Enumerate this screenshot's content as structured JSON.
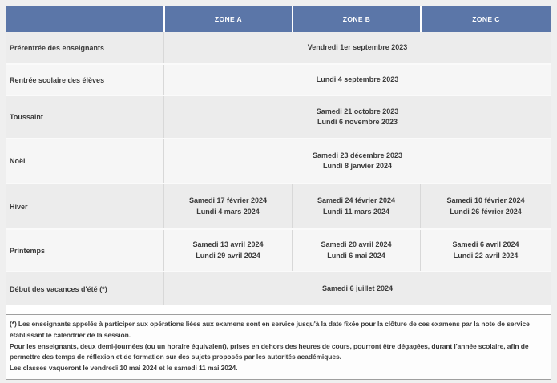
{
  "colors": {
    "header_bg": "#5b76a8",
    "header_text": "#ffffff",
    "row_dark": "#ececec",
    "row_light": "#f6f6f6",
    "text": "#3b3b3b",
    "border": "#9f9f9f",
    "cell_divider": "#d8d8d8",
    "page_bg": "#efefef"
  },
  "table": {
    "header": {
      "corner": "",
      "zones": [
        "ZONE A",
        "ZONE B",
        "ZONE C"
      ]
    },
    "rows": [
      {
        "label": "Prérentrée des enseignants",
        "merged": [
          "Vendredi 1er septembre 2023"
        ]
      },
      {
        "label": "Rentrée scolaire des élèves",
        "merged": [
          "Lundi 4 septembre 2023"
        ]
      },
      {
        "label": "Toussaint",
        "merged": [
          "Samedi 21 octobre 2023",
          "Lundi 6 novembre 2023"
        ]
      },
      {
        "label": "Noël",
        "merged": [
          "Samedi 23 décembre 2023",
          "Lundi 8 janvier 2024"
        ]
      },
      {
        "label": "Hiver",
        "zones": [
          [
            "Samedi 17 février 2024",
            "Lundi 4 mars 2024"
          ],
          [
            "Samedi 24 février 2024",
            "Lundi 11 mars 2024"
          ],
          [
            "Samedi 10 février 2024",
            "Lundi 26 février 2024"
          ]
        ]
      },
      {
        "label": "Printemps",
        "zones": [
          [
            "Samedi 13 avril 2024",
            "Lundi 29 avril 2024"
          ],
          [
            "Samedi 20 avril 2024",
            "Lundi 6 mai 2024"
          ],
          [
            "Samedi 6 avril 2024",
            "Lundi 22 avril 2024"
          ]
        ]
      },
      {
        "label": "Début des vacances d'été (*)",
        "merged": [
          "Samedi 6 juillet 2024"
        ]
      }
    ],
    "footnote": {
      "para1": "(*) Les enseignants appelés à participer aux opérations liées aux examens sont en service jusqu'à la date fixée pour la clôture de ces examens par la note de service établissant le calendrier de la session.",
      "para2": "Pour les enseignants, deux demi-journées (ou un horaire équivalent), prises en dehors des heures de cours, pourront être dégagées, durant l'année scolaire, afin de permettre des temps de réflexion et de formation sur des sujets proposés par les autorités académiques.",
      "para3": "Les classes vaqueront le vendredi 10 mai 2024 et le samedi 11 mai 2024."
    }
  }
}
